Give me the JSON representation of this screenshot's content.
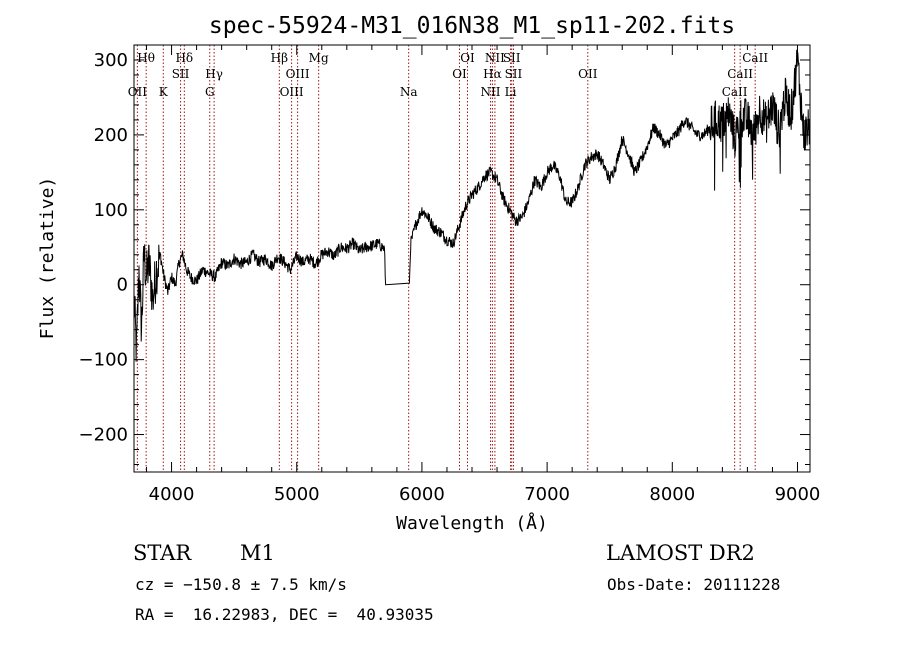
{
  "chart_data": {
    "type": "line",
    "title": "spec-55924-M31_016N38_M1_sp11-202.fits",
    "xlabel": "Wavelength (Å)",
    "ylabel": "Flux (relative)",
    "xlim": [
      3700,
      9100
    ],
    "ylim": [
      -250,
      320
    ],
    "xticks": [
      4000,
      5000,
      6000,
      7000,
      8000,
      9000
    ],
    "yticks": [
      -200,
      -100,
      0,
      100,
      200,
      300
    ],
    "grid": false,
    "series": [
      {
        "x": [
          3700,
          3720,
          3740,
          3760,
          3780,
          3800,
          3820,
          3850,
          3880,
          3910,
          3940,
          3970,
          4000,
          4030,
          4060,
          4090,
          4120,
          4150,
          4200,
          4250,
          4300,
          4350,
          4400,
          4450,
          4500,
          4550,
          4600,
          4650,
          4700,
          4750,
          4800,
          4850,
          4900,
          4950,
          5000,
          5050,
          5100,
          5150,
          5200,
          5250,
          5300,
          5350,
          5400,
          5450,
          5500,
          5550,
          5600,
          5650,
          5700,
          5710,
          5900,
          5910,
          5950,
          6000,
          6050,
          6100,
          6150,
          6200,
          6250,
          6300,
          6350,
          6400,
          6450,
          6500,
          6550,
          6600,
          6650,
          6700,
          6750,
          6800,
          6850,
          6900,
          6950,
          7000,
          7050,
          7100,
          7150,
          7200,
          7250,
          7300,
          7350,
          7400,
          7450,
          7500,
          7550,
          7600,
          7650,
          7700,
          7750,
          7800,
          7850,
          7900,
          7950,
          8000,
          8050,
          8100,
          8150,
          8200,
          8250,
          8300,
          8350,
          8400,
          8450,
          8500,
          8550,
          8600,
          8650,
          8700,
          8750,
          8800,
          8850,
          8900,
          8950,
          9000,
          9050,
          9100
        ],
        "y": [
          -20,
          -90,
          20,
          -60,
          40,
          10,
          30,
          -20,
          20,
          40,
          10,
          -10,
          10,
          0,
          30,
          40,
          20,
          10,
          5,
          20,
          15,
          10,
          30,
          25,
          35,
          28,
          30,
          40,
          30,
          35,
          25,
          38,
          30,
          20,
          38,
          30,
          35,
          28,
          40,
          45,
          38,
          50,
          48,
          55,
          45,
          50,
          52,
          55,
          48,
          0,
          0,
          55,
          80,
          100,
          90,
          75,
          70,
          60,
          55,
          80,
          105,
          120,
          130,
          145,
          150,
          140,
          115,
          100,
          85,
          90,
          110,
          140,
          130,
          150,
          160,
          145,
          110,
          110,
          130,
          160,
          170,
          175,
          160,
          140,
          160,
          195,
          175,
          150,
          165,
          185,
          210,
          200,
          185,
          195,
          205,
          220,
          210,
          200,
          200,
          210,
          220,
          215,
          230,
          195,
          225,
          220,
          200,
          235,
          215,
          240,
          205,
          250,
          230,
          300,
          200,
          210
        ]
      }
    ],
    "emission_lines": [
      {
        "label": "Hθ",
        "x": 3797,
        "row": 1
      },
      {
        "label": "OII",
        "x": 3727,
        "row": 3
      },
      {
        "label": "K",
        "x": 3934,
        "row": 3
      },
      {
        "label": "Hδ",
        "x": 4102,
        "row": 1
      },
      {
        "label": "SII",
        "x": 4072,
        "row": 2
      },
      {
        "label": "Hγ",
        "x": 4340,
        "row": 2
      },
      {
        "label": "G",
        "x": 4305,
        "row": 3
      },
      {
        "label": "Hβ",
        "x": 4861,
        "row": 1
      },
      {
        "label": "OIII",
        "x": 5007,
        "row": 2
      },
      {
        "label": "OIII",
        "x": 4959,
        "row": 3
      },
      {
        "label": "Mg",
        "x": 5175,
        "row": 1
      },
      {
        "label": "Na",
        "x": 5894,
        "row": 3
      },
      {
        "label": "OI",
        "x": 6364,
        "row": 1
      },
      {
        "label": "OI",
        "x": 6300,
        "row": 2
      },
      {
        "label": "NII",
        "x": 6583,
        "row": 1
      },
      {
        "label": "SII",
        "x": 6717,
        "row": 1
      },
      {
        "label": "Hα",
        "x": 6563,
        "row": 2
      },
      {
        "label": "SII",
        "x": 6731,
        "row": 2
      },
      {
        "label": "NII",
        "x": 6548,
        "row": 3
      },
      {
        "label": "Li",
        "x": 6708,
        "row": 3
      },
      {
        "label": "OII",
        "x": 7325,
        "row": 2
      },
      {
        "label": "CaII",
        "x": 8662,
        "row": 1
      },
      {
        "label": "CaII",
        "x": 8542,
        "row": 2
      },
      {
        "label": "CaII",
        "x": 8498,
        "row": 3
      }
    ]
  },
  "info": {
    "object_type": "STAR",
    "subclass": "M1",
    "survey": "LAMOST DR2",
    "redshift": "cz = −150.8 ± 7.5 km/s",
    "obs_date": "Obs-Date: 20111228",
    "coords": "RA =  16.22983, DEC =  40.93035"
  }
}
